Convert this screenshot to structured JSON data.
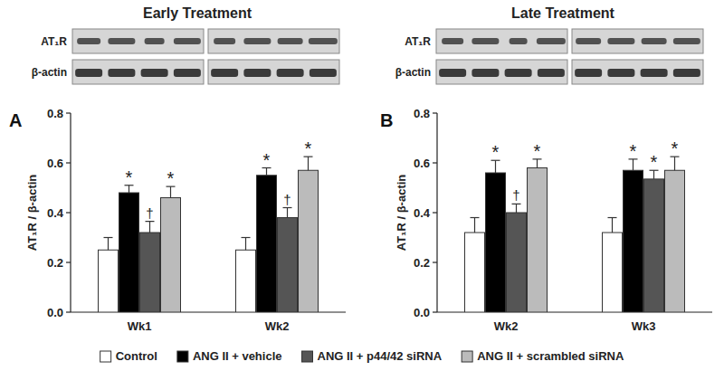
{
  "chart_data": [
    {
      "type": "bar",
      "title": "Early Treatment",
      "panel": "A",
      "blot_labels": [
        "AT₁R",
        "β-actin"
      ],
      "y_label": "AT₁R / β-actin",
      "categories": [
        "Wk1",
        "Wk2"
      ],
      "ylim": [
        0,
        0.8
      ],
      "yticks": [
        {
          "value": 0,
          "label": "0.0"
        },
        {
          "value": 0.2,
          "label": "0.2"
        },
        {
          "value": 0.4,
          "label": "0.4"
        },
        {
          "value": 0.6,
          "label": "0.6"
        },
        {
          "value": 0.8,
          "label": "0.8"
        }
      ],
      "legend": "bottom",
      "series": [
        {
          "name": "Control",
          "color": "#ffffff",
          "values": [
            0.25,
            0.25
          ],
          "errors": [
            0.05,
            0.05
          ],
          "annotations": [
            null,
            null
          ]
        },
        {
          "name": "ANG II + vehicle",
          "color": "#000000",
          "values": [
            0.48,
            0.55
          ],
          "errors": [
            0.03,
            0.03
          ],
          "annotations": [
            "*",
            "*"
          ]
        },
        {
          "name": "ANG II + p44/42 siRNA",
          "color": "#555555",
          "values": [
            0.32,
            0.38
          ],
          "errors": [
            0.045,
            0.04
          ],
          "annotations": [
            "†",
            "†"
          ]
        },
        {
          "name": "ANG II + scrambled siRNA",
          "color": "#bbbbbb",
          "values": [
            0.46,
            0.57
          ],
          "errors": [
            0.045,
            0.055
          ],
          "annotations": [
            "*",
            "*"
          ]
        }
      ]
    },
    {
      "type": "bar",
      "title": "Late Treatment",
      "panel": "B",
      "blot_labels": [
        "AT₁R",
        "β-actin"
      ],
      "y_label": "AT₁R / β-actin",
      "categories": [
        "Wk2",
        "Wk3"
      ],
      "ylim": [
        0,
        0.8
      ],
      "yticks": [
        {
          "value": 0,
          "label": "0.0"
        },
        {
          "value": 0.2,
          "label": "0.2"
        },
        {
          "value": 0.4,
          "label": "0.4"
        },
        {
          "value": 0.6,
          "label": "0.6"
        },
        {
          "value": 0.8,
          "label": "0.8"
        }
      ],
      "series": [
        {
          "color": "#ffffff",
          "values": [
            0.32,
            0.32
          ],
          "errors": [
            0.06,
            0.06
          ],
          "annotations": [
            null,
            null
          ]
        },
        {
          "color": "#000000",
          "values": [
            0.56,
            0.57
          ],
          "errors": [
            0.05,
            0.045
          ],
          "annotations": [
            "*",
            "*"
          ]
        },
        {
          "color": "#555555",
          "values": [
            0.4,
            0.535
          ],
          "errors": [
            0.035,
            0.035
          ],
          "annotations": [
            "†",
            "*"
          ]
        },
        {
          "color": "#bbbbbb",
          "values": [
            0.58,
            0.57
          ],
          "errors": [
            0.035,
            0.055
          ],
          "annotations": [
            "*",
            "*"
          ]
        }
      ]
    }
  ]
}
